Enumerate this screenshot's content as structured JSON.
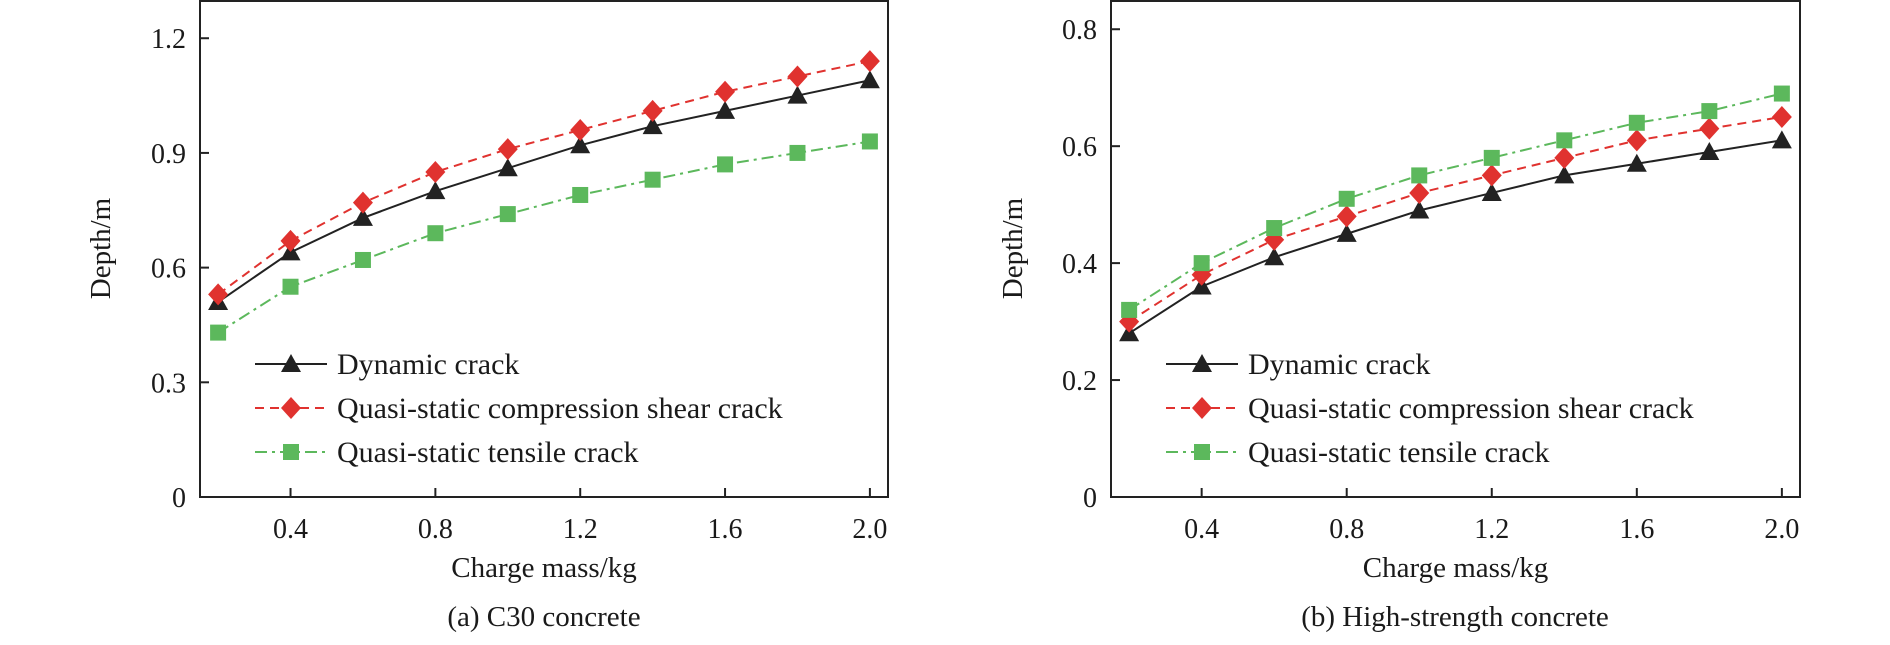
{
  "chart_data": [
    {
      "type": "line",
      "caption": "(a) C30 concrete",
      "xlabel": "Charge mass/kg",
      "ylabel": "Depth/m",
      "xlim": [
        0.15,
        2.05
      ],
      "ylim": [
        0,
        1.3
      ],
      "xticks": [
        0.4,
        0.8,
        1.2,
        1.6,
        2.0
      ],
      "xtick_labels": [
        "0.4",
        "0.8",
        "1.2",
        "1.6",
        "2.0"
      ],
      "yticks": [
        0,
        0.3,
        0.6,
        0.9,
        1.2
      ],
      "ytick_labels": [
        "0",
        "0.3",
        "0.6",
        "0.9",
        "1.2"
      ],
      "legend_position": "bottom-left",
      "x": [
        0.2,
        0.4,
        0.6,
        0.8,
        1.0,
        1.2,
        1.4,
        1.6,
        1.8,
        2.0
      ],
      "series": [
        {
          "name": "Dynamic crack",
          "color": "#222222",
          "marker": "triangle",
          "dash": "solid",
          "values": [
            0.51,
            0.64,
            0.73,
            0.8,
            0.86,
            0.92,
            0.97,
            1.01,
            1.05,
            1.09
          ]
        },
        {
          "name": "Quasi-static compression shear crack",
          "color": "#e0322f",
          "marker": "diamond",
          "dash": "dashed",
          "values": [
            0.53,
            0.67,
            0.77,
            0.85,
            0.91,
            0.96,
            1.01,
            1.06,
            1.1,
            1.14
          ]
        },
        {
          "name": "Quasi-static tensile crack",
          "color": "#5cb85c",
          "marker": "square",
          "dash": "dashdot",
          "values": [
            0.43,
            0.55,
            0.62,
            0.69,
            0.74,
            0.79,
            0.83,
            0.87,
            0.9,
            0.93
          ]
        }
      ]
    },
    {
      "type": "line",
      "caption": "(b) High-strength concrete",
      "xlabel": "Charge mass/kg",
      "ylabel": "Depth/m",
      "xlim": [
        0.15,
        2.05
      ],
      "ylim": [
        0,
        0.85
      ],
      "xticks": [
        0.4,
        0.8,
        1.2,
        1.6,
        2.0
      ],
      "xtick_labels": [
        "0.4",
        "0.8",
        "1.2",
        "1.6",
        "2.0"
      ],
      "yticks": [
        0,
        0.2,
        0.4,
        0.6,
        0.8
      ],
      "ytick_labels": [
        "0",
        "0.2",
        "0.4",
        "0.6",
        "0.8"
      ],
      "legend_position": "bottom-left",
      "x": [
        0.2,
        0.4,
        0.6,
        0.8,
        1.0,
        1.2,
        1.4,
        1.6,
        1.8,
        2.0
      ],
      "series": [
        {
          "name": "Dynamic crack",
          "color": "#222222",
          "marker": "triangle",
          "dash": "solid",
          "values": [
            0.28,
            0.36,
            0.41,
            0.45,
            0.49,
            0.52,
            0.55,
            0.57,
            0.59,
            0.61
          ]
        },
        {
          "name": "Quasi-static compression shear crack",
          "color": "#e0322f",
          "marker": "diamond",
          "dash": "dashed",
          "values": [
            0.3,
            0.38,
            0.44,
            0.48,
            0.52,
            0.55,
            0.58,
            0.61,
            0.63,
            0.65
          ]
        },
        {
          "name": "Quasi-static tensile crack",
          "color": "#5cb85c",
          "marker": "square",
          "dash": "dashdot",
          "values": [
            0.32,
            0.4,
            0.46,
            0.51,
            0.55,
            0.58,
            0.61,
            0.64,
            0.66,
            0.69
          ]
        }
      ]
    }
  ]
}
